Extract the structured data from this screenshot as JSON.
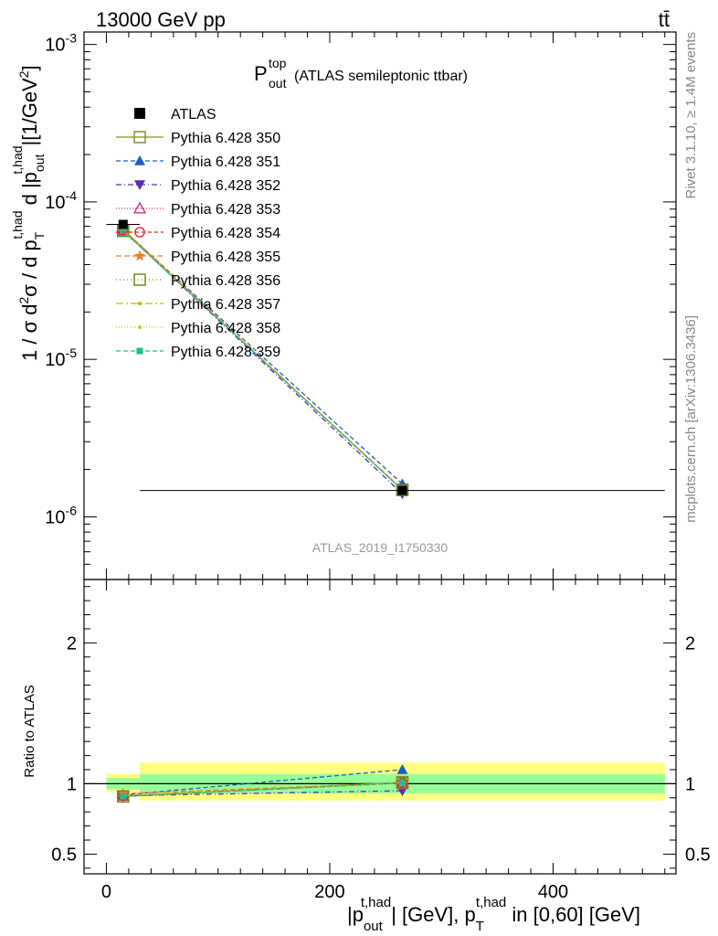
{
  "header": {
    "energy_label": "13000 GeV pp",
    "process_label": "tt̄",
    "side_label_rivet": "Rivet 3.1.10, ≥ 1.4M events",
    "side_label_site": "mcplots.cern.ch [arXiv:1306.3436]",
    "analysis_id": "ATLAS_2019_I1750330"
  },
  "chart_data": {
    "type": "line",
    "title": {
      "main": "P",
      "sup": "top",
      "sub": "out",
      "rest": "(ATLAS semileptonic ttbar)"
    },
    "xlabel": "|p_out^t,had| [GeV], p_T^t,had in [0,60] [GeV]",
    "ylabel": "1 / σ d²σ / d p_T^t,had d |p_out^t,had| [1/GeV²]",
    "ratio_ylabel": "Ratio to ATLAS",
    "xlim": [
      -20,
      510
    ],
    "ylim": [
      4e-07,
      0.0012
    ],
    "log_y": true,
    "ratio_ylim": [
      0.36,
      2.45
    ],
    "x_ticks": [
      "0",
      "200",
      "400"
    ],
    "y_ticks_main": [
      "10^{-6}",
      "10^{-5}",
      "10^{-4}",
      "10^{-3}"
    ],
    "y_ticks_ratio": [
      "0.5",
      "1",
      "2"
    ],
    "bins": [
      [
        0,
        30
      ],
      [
        30,
        500
      ]
    ],
    "x": [
      15,
      265
    ],
    "data": {
      "name": "ATLAS",
      "values": [
        7.2e-05,
        1.47e-06
      ],
      "band_inner": [
        [
          0.96,
          1.04
        ],
        [
          0.93,
          1.07
        ]
      ],
      "band_outer": [
        [
          0.94,
          1.07
        ],
        [
          0.88,
          1.15
        ]
      ]
    },
    "legend_position": "top-left",
    "series": [
      {
        "name": "Pythia 6.428 350",
        "color": "#8b8b28",
        "marker": "open-square",
        "dash": "",
        "values": [
          6.55e-05,
          1.49e-06
        ],
        "ratio": [
          0.91,
          1.01
        ]
      },
      {
        "name": "Pythia 6.428 351",
        "color": "#1f5fbf",
        "marker": "triangle-up",
        "dash": "5,3",
        "values": [
          6.65e-05,
          1.62e-06
        ],
        "ratio": [
          0.92,
          1.1
        ]
      },
      {
        "name": "Pythia 6.428 352",
        "color": "#5a2ab8",
        "marker": "triangle-down",
        "dash": "6,3,1,3",
        "values": [
          6.6e-05,
          1.4e-06
        ],
        "ratio": [
          0.915,
          0.95
        ]
      },
      {
        "name": "Pythia 6.428 353",
        "color": "#c8307a",
        "marker": "open-triangle",
        "dash": "1,2",
        "values": [
          6.6e-05,
          1.48e-06
        ],
        "ratio": [
          0.915,
          1.005
        ]
      },
      {
        "name": "Pythia 6.428 354",
        "color": "#e0202a",
        "marker": "open-circle",
        "dash": "4,3",
        "values": [
          6.6e-05,
          1.48e-06
        ],
        "ratio": [
          0.915,
          1.005
        ]
      },
      {
        "name": "Pythia 6.428 355",
        "color": "#ef7d22",
        "marker": "star",
        "dash": "6,3",
        "values": [
          6.7e-05,
          1.48e-06
        ],
        "ratio": [
          0.93,
          1.005
        ]
      },
      {
        "name": "Pythia 6.428 356",
        "color": "#6a8c1c",
        "marker": "open-square",
        "dash": "1,3",
        "values": [
          6.55e-05,
          1.48e-06
        ],
        "ratio": [
          0.91,
          1.005
        ]
      },
      {
        "name": "Pythia 6.428 357",
        "color": "#c8b400",
        "marker": "small-dot",
        "dash": "8,3,2,3",
        "values": [
          6.6e-05,
          1.48e-06
        ],
        "ratio": [
          0.915,
          1.005
        ]
      },
      {
        "name": "Pythia 6.428 358",
        "color": "#b8d41e",
        "marker": "small-dot",
        "dash": "1,2",
        "values": [
          6.6e-05,
          1.48e-06
        ],
        "ratio": [
          0.915,
          1.005
        ]
      },
      {
        "name": "Pythia 6.428 359",
        "color": "#1fbf8a",
        "marker": "filled-square-small",
        "dash": "5,3",
        "values": [
          6.55e-05,
          1.48e-06
        ],
        "ratio": [
          0.91,
          1.005
        ]
      }
    ]
  }
}
